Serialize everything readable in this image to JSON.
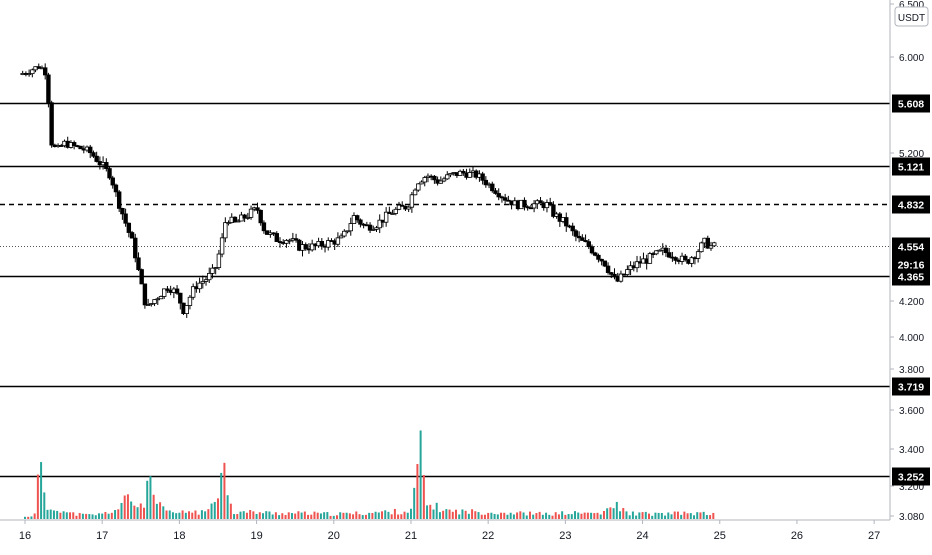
{
  "chart_data": {
    "type": "candlestick",
    "currency": "USDT",
    "y_axis_ticks": [
      "3.080",
      "3.200",
      "3.400",
      "3.600",
      "3.800",
      "4.000",
      "4.200",
      "5.200",
      "6.000",
      "6.500"
    ],
    "x_axis_ticks": [
      "16",
      "17",
      "18",
      "19",
      "20",
      "21",
      "22",
      "23",
      "24",
      "25",
      "26",
      "27"
    ],
    "x_range": [
      16,
      27.05
    ],
    "levels": [
      {
        "label": "5.608",
        "style": "solid",
        "value": 5.608
      },
      {
        "label": "5.121",
        "style": "solid",
        "value": 5.121
      },
      {
        "label": "4.832",
        "style": "dashed",
        "value": 4.832
      },
      {
        "label": "4.365",
        "style": "solid",
        "value": 4.365
      },
      {
        "label": "3.719",
        "style": "solid",
        "value": 3.719
      },
      {
        "label": "3.252",
        "style": "solid",
        "value": 3.252
      }
    ],
    "last_price": {
      "label": "4.554",
      "value": 4.554,
      "countdown": "29:16"
    },
    "price_path": [
      [
        15.97,
        5.85
      ],
      [
        16.05,
        5.87
      ],
      [
        16.15,
        5.9
      ],
      [
        16.22,
        5.92
      ],
      [
        16.3,
        5.89
      ],
      [
        16.34,
        5.7
      ],
      [
        16.37,
        5.3
      ],
      [
        16.45,
        5.22
      ],
      [
        16.55,
        5.28
      ],
      [
        16.7,
        5.25
      ],
      [
        16.85,
        5.22
      ],
      [
        17.0,
        5.15
      ],
      [
        17.15,
        5.05
      ],
      [
        17.25,
        4.85
      ],
      [
        17.35,
        4.7
      ],
      [
        17.45,
        4.55
      ],
      [
        17.55,
        4.3
      ],
      [
        17.62,
        4.15
      ],
      [
        17.7,
        4.2
      ],
      [
        17.8,
        4.25
      ],
      [
        17.9,
        4.3
      ],
      [
        18.0,
        4.25
      ],
      [
        18.1,
        4.15
      ],
      [
        18.25,
        4.3
      ],
      [
        18.4,
        4.35
      ],
      [
        18.5,
        4.4
      ],
      [
        18.58,
        4.55
      ],
      [
        18.65,
        4.75
      ],
      [
        18.75,
        4.7
      ],
      [
        18.9,
        4.75
      ],
      [
        19.05,
        4.8
      ],
      [
        19.15,
        4.65
      ],
      [
        19.3,
        4.6
      ],
      [
        19.45,
        4.6
      ],
      [
        19.6,
        4.55
      ],
      [
        19.8,
        4.55
      ],
      [
        20.0,
        4.58
      ],
      [
        20.15,
        4.6
      ],
      [
        20.3,
        4.75
      ],
      [
        20.45,
        4.68
      ],
      [
        20.6,
        4.7
      ],
      [
        20.8,
        4.78
      ],
      [
        21.0,
        4.82
      ],
      [
        21.12,
        5.0
      ],
      [
        21.25,
        5.05
      ],
      [
        21.4,
        5.0
      ],
      [
        21.55,
        5.05
      ],
      [
        21.7,
        5.07
      ],
      [
        21.9,
        5.05
      ],
      [
        22.05,
        4.98
      ],
      [
        22.25,
        4.88
      ],
      [
        22.4,
        4.83
      ],
      [
        22.6,
        4.83
      ],
      [
        22.8,
        4.83
      ],
      [
        22.9,
        4.76
      ],
      [
        23.05,
        4.7
      ],
      [
        23.2,
        4.6
      ],
      [
        23.35,
        4.55
      ],
      [
        23.55,
        4.45
      ],
      [
        23.7,
        4.32
      ],
      [
        23.85,
        4.4
      ],
      [
        24.0,
        4.45
      ],
      [
        24.15,
        4.48
      ],
      [
        24.3,
        4.52
      ],
      [
        24.45,
        4.5
      ],
      [
        24.6,
        4.45
      ],
      [
        24.75,
        4.52
      ],
      [
        24.85,
        4.58
      ],
      [
        24.93,
        4.55
      ]
    ],
    "volume_path": [
      [
        16.0,
        0.02
      ],
      [
        16.12,
        0.04
      ],
      [
        16.2,
        0.6
      ],
      [
        16.26,
        0.12
      ],
      [
        16.34,
        0.1
      ],
      [
        16.42,
        0.12
      ],
      [
        16.55,
        0.06
      ],
      [
        16.8,
        0.04
      ],
      [
        17.0,
        0.05
      ],
      [
        17.2,
        0.1
      ],
      [
        17.35,
        0.23
      ],
      [
        17.45,
        0.12
      ],
      [
        17.55,
        0.18
      ],
      [
        17.62,
        0.4
      ],
      [
        17.7,
        0.15
      ],
      [
        17.85,
        0.07
      ],
      [
        18.0,
        0.06
      ],
      [
        18.15,
        0.08
      ],
      [
        18.35,
        0.06
      ],
      [
        18.58,
        0.5
      ],
      [
        18.7,
        0.07
      ],
      [
        19.0,
        0.07
      ],
      [
        19.2,
        0.06
      ],
      [
        19.5,
        0.06
      ],
      [
        20.0,
        0.05
      ],
      [
        20.4,
        0.06
      ],
      [
        20.6,
        0.07
      ],
      [
        21.0,
        0.08
      ],
      [
        21.12,
        0.7
      ],
      [
        21.2,
        0.15
      ],
      [
        21.5,
        0.08
      ],
      [
        22.0,
        0.07
      ],
      [
        22.4,
        0.06
      ],
      [
        22.8,
        0.05
      ],
      [
        23.0,
        0.06
      ],
      [
        23.5,
        0.06
      ],
      [
        23.65,
        0.15
      ],
      [
        23.8,
        0.06
      ],
      [
        24.2,
        0.05
      ],
      [
        24.6,
        0.06
      ],
      [
        24.93,
        0.05
      ]
    ],
    "colors": {
      "up": "#26a69a",
      "down": "#ef5350",
      "line": "#000000",
      "axis_text": "#131722",
      "grid": "#e0e3eb"
    }
  }
}
